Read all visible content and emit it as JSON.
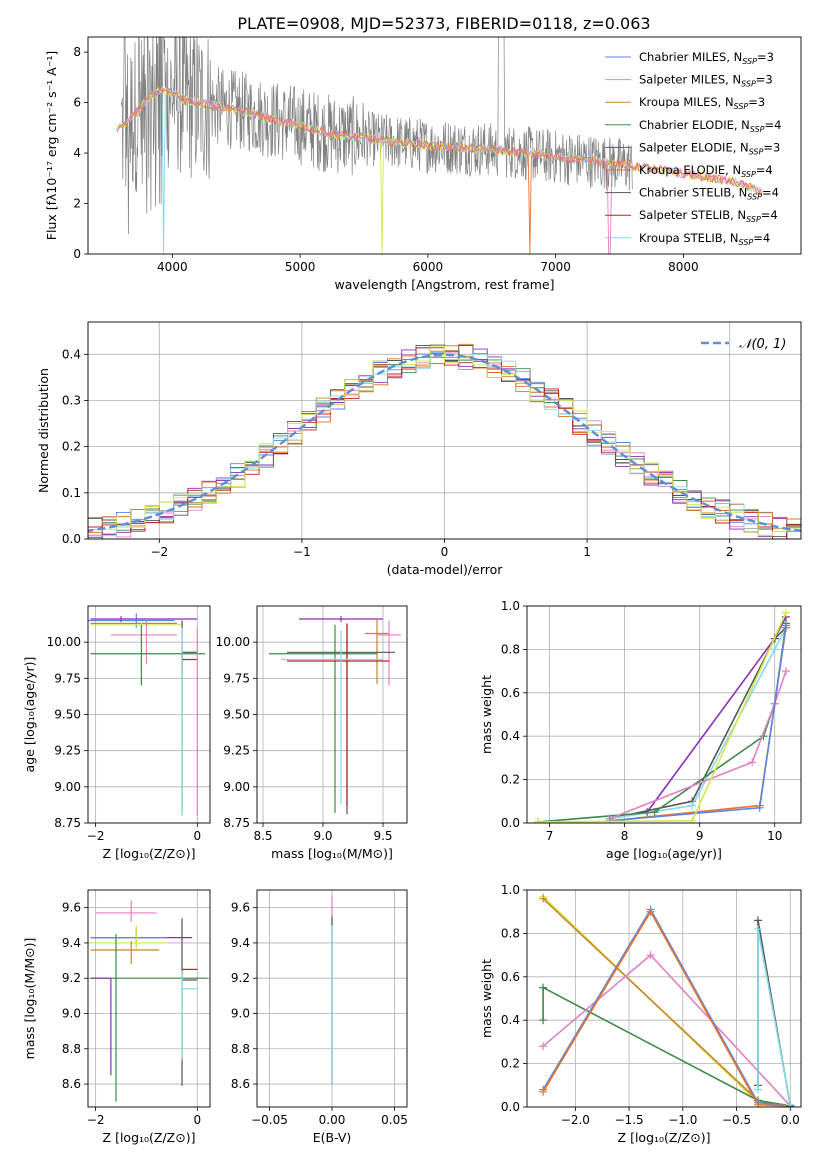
{
  "figure": {
    "title": "PLATE=0908, MJD=52373, FIBERID=0118, z=0.063"
  },
  "colors": {
    "chabrier_miles": "#5b86e5",
    "salpeter_miles": "#e47fc4",
    "kroupa_miles": "#c7852a",
    "chabrier_elodie": "#3c8a4a",
    "salpeter_elodie": "#8e2bb4",
    "kroupa_elodie": "#e07020",
    "chabrier_stelib": "#555555",
    "salpeter_stelib": "#c81c1c",
    "kroupa_stelib": "#86d9ea",
    "yellowgreen": "#d4e84a",
    "data_grey": "#808080",
    "orange_fit": "#e8752a"
  },
  "chart_data": [
    {
      "id": "spectrum",
      "type": "line",
      "xlabel": "wavelength [Angstrom, rest frame]",
      "ylabel": "Flux [fλ10⁻¹⁷ erg cm⁻² s⁻¹ A⁻¹]",
      "xlim": [
        3340,
        8920
      ],
      "ylim": [
        0,
        8.6
      ],
      "xticks": [
        4000,
        5000,
        6000,
        7000,
        8000
      ],
      "yticks": [
        0,
        2,
        4,
        6,
        8
      ],
      "grid": false,
      "legend_position": "top-right",
      "series": [
        {
          "name": "Chabrier MILES, N_SSP=3",
          "color": "#5b86e5"
        },
        {
          "name": "Salpeter MILES, N_SSP=3",
          "color": "#e47fc4"
        },
        {
          "name": "Kroupa MILES, N_SSP=3",
          "color": "#c7852a"
        },
        {
          "name": "Chabrier ELODIE, N_SSP=4",
          "color": "#3c8a4a"
        },
        {
          "name": "Salpeter ELODIE, N_SSP=3",
          "color": "#8e2bb4"
        },
        {
          "name": "Kroupa ELODIE, N_SSP=4",
          "color": "#e07020"
        },
        {
          "name": "Chabrier STELIB, N_SSP=4",
          "color": "#555555"
        },
        {
          "name": "Salpeter STELIB, N_SSP=4",
          "color": "#c81c1c"
        },
        {
          "name": "Kroupa STELIB, N_SSP=4",
          "color": "#86d9ea"
        }
      ],
      "continuum": {
        "x": [
          3600,
          3700,
          3800,
          3900,
          4000,
          4100,
          4200,
          4400,
          4600,
          4800,
          5000,
          5200,
          5500,
          5800,
          6000,
          6300,
          6600,
          6900,
          7200,
          7500,
          7800,
          8100,
          8400,
          8600
        ],
        "y": [
          5.0,
          5.5,
          6.1,
          6.5,
          6.4,
          6.1,
          6.0,
          5.8,
          5.6,
          5.3,
          5.1,
          4.8,
          4.6,
          4.4,
          4.3,
          4.2,
          4.1,
          3.9,
          3.75,
          3.55,
          3.35,
          3.1,
          2.85,
          2.5
        ]
      },
      "dips": [
        {
          "x": 3935,
          "y": 0.0
        },
        {
          "x": 5640,
          "y": 0.0
        },
        {
          "x": 6795,
          "y": 0.0
        },
        {
          "x": 7420,
          "y": 0.0
        }
      ]
    },
    {
      "id": "residuals",
      "type": "line",
      "xlabel": "(data-model)/error",
      "ylabel": "Normed distribution",
      "xlim": [
        -2.5,
        2.5
      ],
      "ylim": [
        0,
        0.47
      ],
      "xticks": [
        -2,
        -1,
        0,
        1,
        2
      ],
      "yticks": [
        0.0,
        0.1,
        0.2,
        0.3,
        0.4
      ],
      "grid": true,
      "legend_position": "top-right",
      "legend_label": "𝒩(0, 1)",
      "gaussian": {
        "mean": 0,
        "sigma": 1
      }
    },
    {
      "id": "age_vs_Z",
      "type": "scatter",
      "xlabel": "Z [log₁₀(Z/Z⊙)]",
      "ylabel": "age  [log₁₀(age/yr)]",
      "xlim": [
        -2.15,
        0.25
      ],
      "ylim": [
        8.75,
        10.25
      ],
      "xticks": [
        -2,
        0
      ],
      "yticks": [
        8.75,
        9.0,
        9.25,
        9.5,
        9.75,
        10.0
      ],
      "grid": true,
      "points": [
        {
          "x": -1.2,
          "y": 10.15,
          "xerr": [
            0.95,
            0.75
          ],
          "yerr": [
            0.05,
            0.05
          ],
          "color": "#5b86e5"
        },
        {
          "x": -1.5,
          "y": 10.16,
          "xerr": [
            0.6,
            1.5
          ],
          "yerr": [
            0.02,
            0.02
          ],
          "color": "#8e2bb4"
        },
        {
          "x": -1.0,
          "y": 10.13,
          "xerr": [
            1.1,
            0.6
          ],
          "yerr": [
            0.02,
            0.02
          ],
          "color": "#c7852a"
        },
        {
          "x": -1.1,
          "y": 10.12,
          "xerr": [
            1.0,
            0.8
          ],
          "yerr": [
            0.02,
            0.02
          ],
          "color": "#d4e84a"
        },
        {
          "x": -1.0,
          "y": 10.05,
          "xerr": [
            0.7,
            0.6
          ],
          "yerr": [
            0.2,
            0.1
          ],
          "color": "#e47fc4"
        },
        {
          "x": -1.1,
          "y": 9.92,
          "xerr": [
            1.0,
            1.25
          ],
          "yerr": [
            0.22,
            0.2
          ],
          "color": "#3c8a4a"
        },
        {
          "x": -0.3,
          "y": 9.93,
          "xerr": [
            0.0,
            0.3
          ],
          "yerr": [
            1.12,
            0.22
          ],
          "color": "#555555"
        },
        {
          "x": -0.3,
          "y": 9.88,
          "xerr": [
            0.0,
            0.3
          ],
          "yerr": [
            0.1,
            0.05
          ],
          "color": "#c81c1c"
        },
        {
          "x": -0.3,
          "y": 9.5,
          "xerr": [
            0.0,
            0.0
          ],
          "yerr": [
            0.7,
            0.6
          ],
          "color": "#86d9ea"
        },
        {
          "x": 0.0,
          "y": 9.5,
          "xerr": [
            0.0,
            0.0
          ],
          "yerr": [
            0.7,
            0.6
          ],
          "color": "#e47fc4"
        }
      ]
    },
    {
      "id": "age_vs_mass",
      "type": "scatter",
      "xlabel": "mass [log₁₀(M/M⊙)]",
      "ylabel": "",
      "xlim": [
        8.45,
        9.7
      ],
      "ylim": [
        8.75,
        10.25
      ],
      "xticks": [
        8.5,
        9.0,
        9.5
      ],
      "yticks": [
        8.75,
        9.0,
        9.25,
        9.5,
        9.75,
        10.0
      ],
      "grid": true,
      "points": [
        {
          "x": 9.15,
          "y": 10.16,
          "xerr": [
            0.35,
            0.35
          ],
          "yerr": [
            0.02,
            0.02
          ],
          "color": "#8e2bb4"
        },
        {
          "x": 9.45,
          "y": 10.06,
          "xerr": [
            0.1,
            0.1
          ],
          "yerr": [
            0.35,
            0.1
          ],
          "color": "#c7852a"
        },
        {
          "x": 9.55,
          "y": 10.05,
          "xerr": [
            0.1,
            0.1
          ],
          "yerr": [
            0.35,
            0.1
          ],
          "color": "#e47fc4"
        },
        {
          "x": 9.1,
          "y": 9.92,
          "xerr": [
            0.55,
            0.35
          ],
          "yerr": [
            1.1,
            0.2
          ],
          "color": "#3c8a4a"
        },
        {
          "x": 9.2,
          "y": 9.93,
          "xerr": [
            0.5,
            0.4
          ],
          "yerr": [
            1.12,
            0.2
          ],
          "color": "#555555"
        },
        {
          "x": 9.2,
          "y": 9.87,
          "xerr": [
            0.5,
            0.35
          ],
          "yerr": [
            1.0,
            0.25
          ],
          "color": "#c81c1c"
        },
        {
          "x": 9.15,
          "y": 9.88,
          "xerr": [
            0.5,
            0.35
          ],
          "yerr": [
            1.0,
            0.2
          ],
          "color": "#86d9ea"
        }
      ]
    },
    {
      "id": "mass_weight_vs_age",
      "type": "line",
      "xlabel": "age  [log₁₀(age/yr)]",
      "ylabel": "mass weight",
      "xlim": [
        6.7,
        10.35
      ],
      "ylim": [
        0,
        1.0
      ],
      "xticks": [
        7,
        8,
        9,
        10
      ],
      "yticks": [
        0.0,
        0.2,
        0.4,
        0.6,
        0.8,
        1.0
      ],
      "grid": true,
      "series": [
        {
          "color": "#8e2bb4",
          "x": [
            8.3,
            10.0,
            10.15
          ],
          "y": [
            0.05,
            0.85,
            0.95
          ]
        },
        {
          "color": "#555555",
          "x": [
            7.8,
            8.9,
            10.0,
            10.15
          ],
          "y": [
            0.02,
            0.1,
            0.85,
            0.9
          ]
        },
        {
          "color": "#86d9ea",
          "x": [
            7.8,
            8.9,
            10.0,
            10.15
          ],
          "y": [
            0.02,
            0.08,
            0.8,
            0.9
          ]
        },
        {
          "color": "#3c8a4a",
          "x": [
            6.85,
            8.4,
            9.85,
            10.0,
            10.15
          ],
          "y": [
            0.005,
            0.05,
            0.4,
            0.55,
            0.92
          ]
        },
        {
          "color": "#e47fc4",
          "x": [
            7.8,
            9.7,
            10.0,
            10.15
          ],
          "y": [
            0.02,
            0.28,
            0.55,
            0.7
          ]
        },
        {
          "color": "#e8752a",
          "x": [
            7.8,
            9.8,
            10.15
          ],
          "y": [
            0.01,
            0.08,
            0.9
          ]
        },
        {
          "color": "#5b86e5",
          "x": [
            7.8,
            9.8,
            10.15
          ],
          "y": [
            0.01,
            0.07,
            0.91
          ]
        },
        {
          "color": "#d4e84a",
          "x": [
            6.85,
            8.9,
            10.15
          ],
          "y": [
            0.005,
            0.01,
            0.97
          ]
        }
      ]
    },
    {
      "id": "mass_vs_Z",
      "type": "scatter",
      "xlabel": "Z [log₁₀(Z/Z⊙)]",
      "ylabel": "mass [log₁₀(M/M⊙)]",
      "xlim": [
        -2.15,
        0.25
      ],
      "ylim": [
        8.47,
        9.7
      ],
      "xticks": [
        -2,
        0
      ],
      "yticks": [
        8.6,
        8.8,
        9.0,
        9.2,
        9.4,
        9.6
      ],
      "grid": true,
      "points": [
        {
          "x": -1.3,
          "y": 9.57,
          "xerr": [
            0.7,
            0.5
          ],
          "yerr": [
            0.05,
            0.07
          ],
          "color": "#e47fc4"
        },
        {
          "x": -1.2,
          "y": 9.43,
          "xerr": [
            0.9,
            1.1
          ],
          "yerr": [
            0.04,
            0.05
          ],
          "color": "#8e2bb4"
        },
        {
          "x": -1.2,
          "y": 9.43,
          "xerr": [
            0.9,
            0.6
          ],
          "yerr": [
            0.04,
            0.05
          ],
          "color": "#5b86e5"
        },
        {
          "x": -1.2,
          "y": 9.4,
          "xerr": [
            0.9,
            0.6
          ],
          "yerr": [
            0.04,
            0.1
          ],
          "color": "#d4e84a"
        },
        {
          "x": -1.3,
          "y": 9.36,
          "xerr": [
            0.8,
            0.55
          ],
          "yerr": [
            0.08,
            0.05
          ],
          "color": "#c7852a"
        },
        {
          "x": -1.6,
          "y": 9.2,
          "xerr": [
            0.5,
            1.8
          ],
          "yerr": [
            0.7,
            0.25
          ],
          "color": "#3c8a4a"
        },
        {
          "x": -1.7,
          "y": 9.2,
          "xerr": [
            0.4,
            0.0
          ],
          "yerr": [
            0.55,
            0.0
          ],
          "color": "#8e2bb4"
        },
        {
          "x": -0.3,
          "y": 9.25,
          "xerr": [
            0.0,
            0.3
          ],
          "yerr": [
            0.0,
            0.0
          ],
          "color": "#c81c1c"
        },
        {
          "x": -0.3,
          "y": 9.19,
          "xerr": [
            0.0,
            0.3
          ],
          "yerr": [
            0.6,
            0.35
          ],
          "color": "#555555"
        },
        {
          "x": -0.3,
          "y": 9.14,
          "xerr": [
            0.0,
            0.3
          ],
          "yerr": [
            0.4,
            0.1
          ],
          "color": "#86d9ea"
        }
      ]
    },
    {
      "id": "mass_vs_ebv",
      "type": "scatter",
      "xlabel": "E(B-V)",
      "ylabel": "",
      "xlim": [
        -0.06,
        0.06
      ],
      "ylim": [
        8.47,
        9.7
      ],
      "xticks": [
        -0.05,
        0.0,
        0.05
      ],
      "yticks": [
        8.6,
        8.8,
        9.0,
        9.2,
        9.4,
        9.6
      ],
      "grid": true,
      "points": [
        {
          "x": 0.0,
          "y": 9.55,
          "xerr": [
            0,
            0
          ],
          "yerr": [
            0.95,
            0.12
          ],
          "color": "#e47fc4"
        },
        {
          "x": 0.0,
          "y": 9.5,
          "xerr": [
            0,
            0
          ],
          "yerr": [
            0.9,
            0.05
          ],
          "color": "#555555"
        },
        {
          "x": 0.0,
          "y": 9.45,
          "xerr": [
            0,
            0
          ],
          "yerr": [
            0.85,
            0.05
          ],
          "color": "#86d9ea"
        }
      ]
    },
    {
      "id": "mass_weight_vs_Z",
      "type": "line",
      "xlabel": "Z [log₁₀(Z/Z⊙)]",
      "ylabel": "mass weight",
      "xlim": [
        -2.45,
        0.1
      ],
      "ylim": [
        0,
        1.0
      ],
      "xticks": [
        -2.0,
        -1.5,
        -1.0,
        -0.5,
        0.0
      ],
      "yticks": [
        0.0,
        0.2,
        0.4,
        0.6,
        0.8,
        1.0
      ],
      "grid": true,
      "series": [
        {
          "color": "#d4e84a",
          "x": [
            -2.3,
            -0.3,
            0.0
          ],
          "y": [
            0.97,
            0.02,
            0.005
          ]
        },
        {
          "color": "#c7852a",
          "x": [
            -2.3,
            -0.3,
            0.0
          ],
          "y": [
            0.96,
            0.03,
            0.005
          ]
        },
        {
          "color": "#3c8a4a",
          "x": [
            -2.3,
            -2.3,
            -0.3,
            0.0
          ],
          "y": [
            0.4,
            0.55,
            0.03,
            0.005
          ]
        },
        {
          "color": "#e47fc4",
          "x": [
            -2.3,
            -1.3,
            0.0
          ],
          "y": [
            0.28,
            0.7,
            0.005
          ]
        },
        {
          "color": "#5b86e5",
          "x": [
            -2.3,
            -1.3,
            -0.3,
            0.0
          ],
          "y": [
            0.08,
            0.91,
            0.02,
            0.005
          ]
        },
        {
          "color": "#e8752a",
          "x": [
            -2.3,
            -1.3,
            -0.3,
            0.0
          ],
          "y": [
            0.07,
            0.9,
            0.01,
            0.005
          ]
        },
        {
          "color": "#555555",
          "x": [
            -0.3,
            -0.3,
            0.0
          ],
          "y": [
            0.1,
            0.86,
            0.005
          ]
        },
        {
          "color": "#86d9ea",
          "x": [
            -0.3,
            -0.3,
            0.0
          ],
          "y": [
            0.08,
            0.82,
            0.01
          ]
        }
      ]
    }
  ]
}
